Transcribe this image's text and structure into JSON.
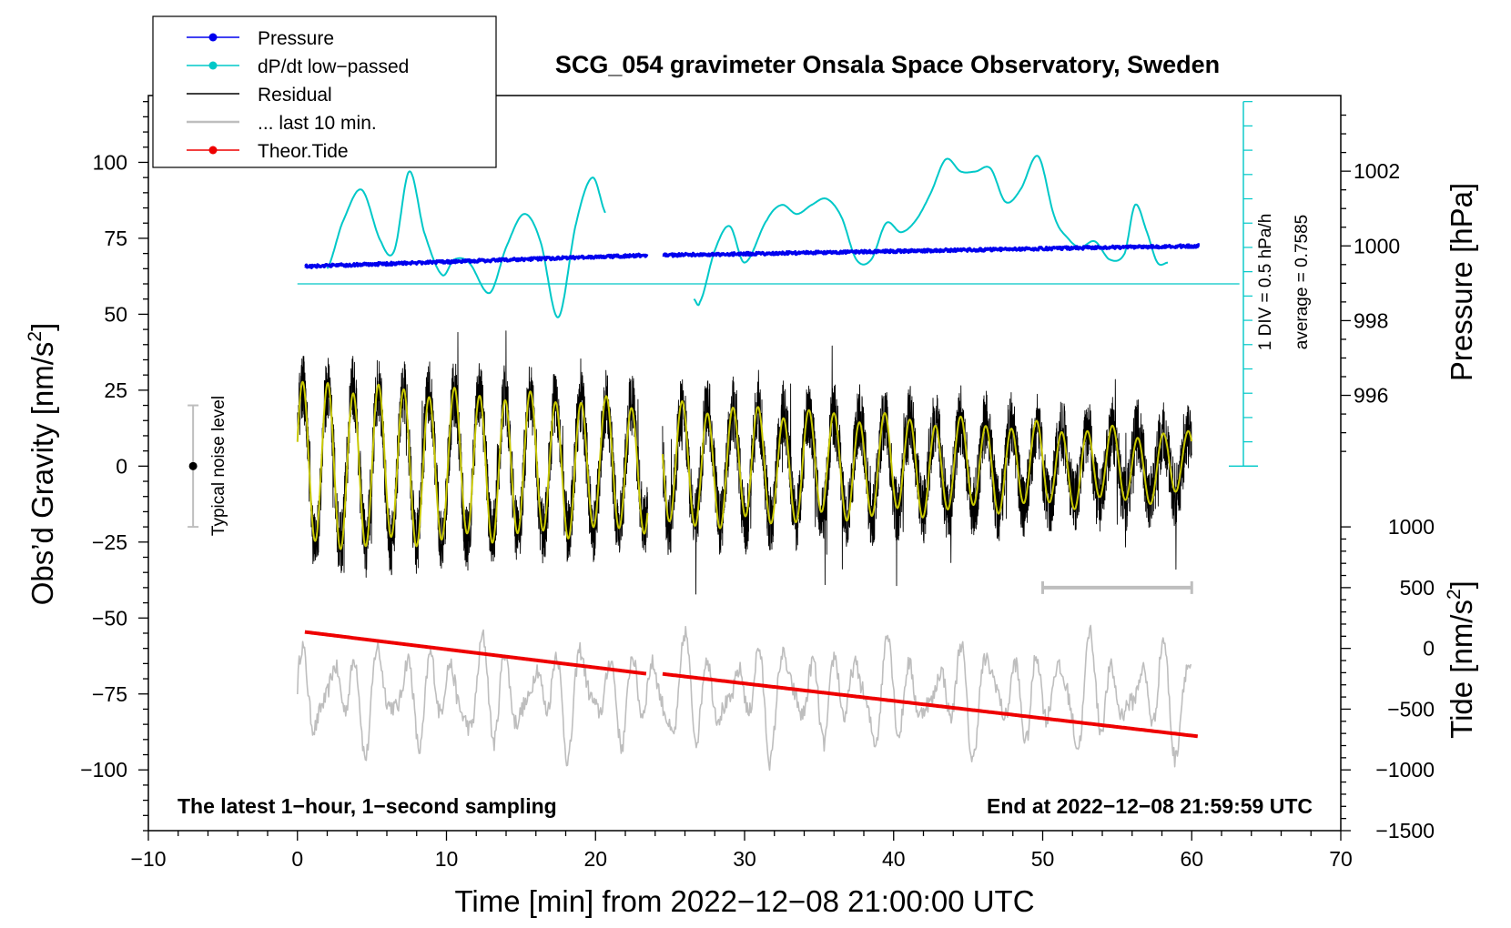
{
  "chart_data": {
    "type": "line",
    "title": "SCG_054 gravimeter Onsala Space Observatory, Sweden",
    "xlabel": "Time [min] from 2022−12−08 21:00:00 UTC",
    "ylabel_left_prefix": "Obs’d Gravity [nm/s",
    "ylabel_left_sup": "2",
    "ylabel_left_suffix": "]",
    "ylabel_right_pressure": "Pressure [hPa]",
    "ylabel_right_tide_prefix": "Tide [nm/s",
    "ylabel_right_tide_sup": "2",
    "ylabel_right_tide_suffix": "]",
    "xlim": [
      -10,
      70
    ],
    "ylim": [
      -120,
      122
    ],
    "x_ticks": [
      -10,
      0,
      10,
      20,
      30,
      40,
      50,
      60,
      70
    ],
    "x_tick_labels": [
      "−10",
      "0",
      "10",
      "20",
      "30",
      "40",
      "50",
      "60",
      "70"
    ],
    "y_ticks": [
      100,
      75,
      50,
      25,
      0,
      -25,
      -50,
      -75,
      -100
    ],
    "y_tick_labels": [
      "100",
      "75",
      "50",
      "25",
      "0",
      "−25",
      "−50",
      "−75",
      "−100"
    ],
    "pressure_ticks": [
      1002,
      1000,
      998,
      996
    ],
    "pressure_tick_labels": [
      "1002",
      "1000",
      "998",
      "996"
    ],
    "pressure_to_gravity": {
      "p0": 1000,
      "g0": 72.5,
      "nm_per_hpa": 12.3
    },
    "tide_ticks": [
      1000,
      500,
      0,
      -500,
      -1000,
      -1500
    ],
    "tide_tick_labels": [
      "1000",
      "500",
      "0",
      "−500",
      "−1000",
      "−1500"
    ],
    "tide_to_gravity": {
      "t0": 0,
      "g0": -60,
      "nm_per_unit": 0.04
    },
    "legend": [
      {
        "label": "Pressure",
        "color": "#0000ee",
        "marker": true
      },
      {
        "label": "dP/dt low−passed",
        "color": "#00c8c8",
        "marker": true
      },
      {
        "label": "Residual",
        "color": "#000000",
        "marker": false
      },
      {
        "label": "... last 10 min.",
        "color": "#bebebe",
        "marker": false
      },
      {
        "label": "Theor.Tide",
        "color": "#ee0000",
        "marker": true
      }
    ],
    "series": [
      {
        "name": "Pressure",
        "color": "#0000ee",
        "units": "hPa",
        "segments": [
          {
            "x": [
              0.5,
              23.5
            ],
            "y": [
              999.45,
              999.75
            ]
          },
          {
            "x": [
              24.5,
              60.5
            ],
            "y": [
              999.75,
              1000.0
            ]
          }
        ]
      },
      {
        "name": "dP/dt low-passed",
        "color": "#00c8c8",
        "units": "nm/s2 (plot scale)",
        "segments": [
          {
            "x": [
              2.0,
              3.0,
              4.3,
              5.6,
              6.5,
              7.5,
              8.5,
              9.7,
              10.5,
              11.5,
              12.9,
              14.0,
              15.2,
              16.3,
              17.5,
              18.7,
              19.8,
              20.7
            ],
            "y": [
              65,
              80,
              91,
              74,
              71,
              97,
              77,
              63,
              68,
              67,
              57,
              72,
              83,
              74,
              49,
              80,
              95,
              83
            ]
          },
          {
            "x": [
              26.6,
              27.0,
              28.0,
              29.0,
              30.0,
              31.5,
              32.5,
              33.5,
              34.5,
              35.5,
              36.5,
              37.5,
              38.5,
              39.5,
              40.5,
              41.5,
              42.5,
              43.5,
              44.5,
              45.5,
              46.5,
              47.5,
              48.5,
              49.7,
              50.8,
              51.7,
              52.5,
              53.5,
              54.5,
              55.5,
              56.2,
              57.0,
              57.7,
              58.4
            ],
            "y": [
              55,
              54,
              71,
              79,
              67,
              81,
              86,
              83,
              86,
              88,
              82,
              68,
              68,
              80,
              77,
              81,
              90,
              101,
              97,
              97,
              98,
              87,
              91,
              102,
              82,
              75,
              72,
              74,
              68,
              70,
              86,
              77,
              67,
              67
            ]
          }
        ]
      },
      {
        "name": "Residual",
        "color": "#000000",
        "note": "1-second sampled residual, oscillating about 0 with amplitude ~20-40 nm/s2; data gap near 23.5-24.5 min",
        "segments": [
          {
            "x_range": [
              0,
              23.5
            ]
          },
          {
            "x_range": [
              24.5,
              60
            ]
          }
        ],
        "range": [
          -52,
          53
        ]
      },
      {
        "name": "Residual (smoothed)",
        "color": "#c8c800",
        "note": "yellow overlay, ~1.7 min period, amplitude decreasing from ~27 to ~7"
      },
      {
        "name": "... last 10 min.",
        "color": "#bebebe",
        "note": "grey trace centred near -75 nm/s2 (plot scale), range ~ -106 to -42"
      },
      {
        "name": "Theor.Tide",
        "color": "#ee0000",
        "units": "nm/s2",
        "segments": [
          {
            "x": [
              0.5,
              23.5
            ],
            "y": [
              135,
              -210
            ]
          },
          {
            "x": [
              24.5,
              60.5
            ],
            "y": [
              -210,
              -725
            ]
          }
        ]
      }
    ],
    "annotations": {
      "noise_label": "Typical noise level",
      "noise_bar": {
        "x": -7,
        "y": 0,
        "y_range": [
          -20,
          20
        ]
      },
      "scale_bar_x": [
        50,
        60
      ],
      "scale_bar_y": -40,
      "dpdt_zero_line": 60,
      "dpdt_scale_text": "1 DIV = 0.5 hPa/h",
      "dpdt_average_text": "average = 0.7585",
      "bottom_left_text": "The latest 1−hour, 1−second sampling",
      "bottom_right_text": "End at 2022−12−08 21:59:59 UTC"
    }
  }
}
